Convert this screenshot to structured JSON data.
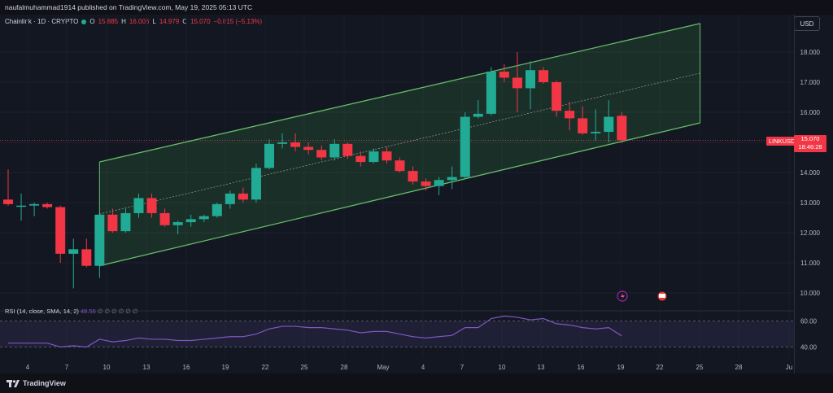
{
  "header": {
    "attribution": "naufalmuhammad1914 published on TradingView.com, May 19, 2025 05:13 UTC"
  },
  "symbol": {
    "name": "Chainlink · 1D · CRYPTO",
    "o_label": "O",
    "o": "15.885",
    "h_label": "H",
    "h": "16.006",
    "l_label": "L",
    "l": "14.979",
    "c_label": "C",
    "c": "15.070",
    "change": "−0.815 (−5.13%)"
  },
  "currency_button": "USD",
  "price_tag": {
    "symbol": "LINKUSD",
    "price": "15.070",
    "countdown": "18:46:28"
  },
  "rsi": {
    "label": "RSI (14, close, SMA, 14, 2)",
    "value": "48.56",
    "extra": "∅ ∅ ∅ ∅ ∅ ∅",
    "levels": [
      "60.00",
      "40.00"
    ]
  },
  "footer": {
    "brand": "TradingView"
  },
  "colors": {
    "up": "#22ab94",
    "down": "#f23645",
    "channel": "#66bb6a",
    "rsi": "#7e57c2",
    "background": "#131722"
  },
  "chart_data": {
    "type": "candlestick",
    "y_axis_labels": [
      "18.000",
      "17.000",
      "16.000",
      "15.000",
      "14.000",
      "13.000",
      "12.000",
      "11.000",
      "10.000"
    ],
    "ylim": [
      9.7,
      19.2
    ],
    "x_tick_labels": [
      "4",
      "7",
      "10",
      "13",
      "16",
      "19",
      "22",
      "25",
      "28",
      "May",
      "4",
      "7",
      "10",
      "13",
      "16",
      "19",
      "22",
      "25",
      "28",
      "Ju"
    ],
    "candles": [
      {
        "o": 13.1,
        "h": 14.1,
        "l": 12.9,
        "c": 12.95
      },
      {
        "o": 12.9,
        "h": 13.3,
        "l": 12.4,
        "c": 12.9
      },
      {
        "o": 12.9,
        "h": 13.0,
        "l": 12.55,
        "c": 12.95
      },
      {
        "o": 12.95,
        "h": 13.0,
        "l": 12.8,
        "c": 12.85
      },
      {
        "o": 12.85,
        "h": 12.9,
        "l": 11.0,
        "c": 11.3
      },
      {
        "o": 11.3,
        "h": 11.8,
        "l": 10.15,
        "c": 11.45
      },
      {
        "o": 11.45,
        "h": 11.8,
        "l": 10.85,
        "c": 10.9
      },
      {
        "o": 10.9,
        "h": 12.6,
        "l": 10.5,
        "c": 12.6
      },
      {
        "o": 12.6,
        "h": 12.8,
        "l": 12.0,
        "c": 12.05
      },
      {
        "o": 12.05,
        "h": 12.8,
        "l": 12.0,
        "c": 12.65
      },
      {
        "o": 12.65,
        "h": 13.3,
        "l": 12.5,
        "c": 13.15
      },
      {
        "o": 13.15,
        "h": 13.3,
        "l": 12.5,
        "c": 12.65
      },
      {
        "o": 12.65,
        "h": 12.8,
        "l": 12.2,
        "c": 12.25
      },
      {
        "o": 12.25,
        "h": 12.4,
        "l": 11.95,
        "c": 12.35
      },
      {
        "o": 12.35,
        "h": 12.6,
        "l": 12.2,
        "c": 12.45
      },
      {
        "o": 12.45,
        "h": 12.6,
        "l": 12.35,
        "c": 12.55
      },
      {
        "o": 12.55,
        "h": 13.0,
        "l": 12.5,
        "c": 12.95
      },
      {
        "o": 12.95,
        "h": 13.4,
        "l": 12.8,
        "c": 13.3
      },
      {
        "o": 13.3,
        "h": 13.5,
        "l": 13.0,
        "c": 13.1
      },
      {
        "o": 13.1,
        "h": 14.3,
        "l": 13.0,
        "c": 14.15
      },
      {
        "o": 14.15,
        "h": 15.1,
        "l": 14.1,
        "c": 14.95
      },
      {
        "o": 14.95,
        "h": 15.3,
        "l": 14.8,
        "c": 15.0
      },
      {
        "o": 15.0,
        "h": 15.3,
        "l": 14.7,
        "c": 14.85
      },
      {
        "o": 14.85,
        "h": 15.0,
        "l": 14.6,
        "c": 14.75
      },
      {
        "o": 14.75,
        "h": 14.9,
        "l": 14.4,
        "c": 14.5
      },
      {
        "o": 14.5,
        "h": 15.1,
        "l": 14.4,
        "c": 14.95
      },
      {
        "o": 14.95,
        "h": 15.0,
        "l": 14.45,
        "c": 14.55
      },
      {
        "o": 14.55,
        "h": 14.7,
        "l": 14.2,
        "c": 14.35
      },
      {
        "o": 14.35,
        "h": 14.8,
        "l": 14.3,
        "c": 14.7
      },
      {
        "o": 14.7,
        "h": 14.85,
        "l": 14.3,
        "c": 14.4
      },
      {
        "o": 14.4,
        "h": 14.5,
        "l": 14.0,
        "c": 14.05
      },
      {
        "o": 14.05,
        "h": 14.2,
        "l": 13.6,
        "c": 13.7
      },
      {
        "o": 13.7,
        "h": 13.8,
        "l": 13.4,
        "c": 13.55
      },
      {
        "o": 13.55,
        "h": 13.85,
        "l": 13.25,
        "c": 13.75
      },
      {
        "o": 13.75,
        "h": 14.2,
        "l": 13.45,
        "c": 13.85
      },
      {
        "o": 13.85,
        "h": 16.0,
        "l": 13.8,
        "c": 15.85
      },
      {
        "o": 15.85,
        "h": 16.4,
        "l": 15.8,
        "c": 15.95
      },
      {
        "o": 15.95,
        "h": 17.5,
        "l": 15.9,
        "c": 17.35
      },
      {
        "o": 17.35,
        "h": 17.6,
        "l": 17.0,
        "c": 17.15
      },
      {
        "o": 17.15,
        "h": 18.0,
        "l": 16.0,
        "c": 16.8
      },
      {
        "o": 16.8,
        "h": 17.7,
        "l": 16.1,
        "c": 17.4
      },
      {
        "o": 17.4,
        "h": 17.5,
        "l": 16.95,
        "c": 17.0
      },
      {
        "o": 17.0,
        "h": 17.05,
        "l": 15.85,
        "c": 16.05
      },
      {
        "o": 16.05,
        "h": 16.35,
        "l": 15.4,
        "c": 15.8
      },
      {
        "o": 15.8,
        "h": 16.2,
        "l": 15.25,
        "c": 15.3
      },
      {
        "o": 15.3,
        "h": 16.1,
        "l": 15.05,
        "c": 15.35
      },
      {
        "o": 15.35,
        "h": 16.4,
        "l": 15.0,
        "c": 15.85
      },
      {
        "o": 15.885,
        "h": 16.006,
        "l": 14.979,
        "c": 15.07
      }
    ],
    "channel": {
      "upper": [
        {
          "x": 7,
          "y": 14.35
        },
        {
          "x": 53,
          "y": 18.95
        }
      ],
      "lower": [
        {
          "x": 7,
          "y": 10.9
        },
        {
          "x": 53,
          "y": 15.65
        }
      ],
      "mid": [
        {
          "x": 7,
          "y": 12.62
        },
        {
          "x": 53,
          "y": 17.3
        }
      ]
    },
    "rsi_values": [
      43,
      43,
      43,
      43,
      40,
      41,
      40,
      46,
      44,
      45,
      47,
      46,
      46,
      45,
      45,
      46,
      47,
      48,
      48,
      50,
      54,
      56,
      56,
      55,
      55,
      54,
      53,
      51,
      52,
      52,
      50,
      48,
      47,
      48,
      49,
      55,
      55,
      62,
      64,
      63,
      61,
      62,
      58,
      57,
      55,
      54,
      55,
      48.56
    ],
    "rsi_ylim": [
      34,
      68
    ],
    "rsi_levels": [
      60,
      40
    ]
  }
}
